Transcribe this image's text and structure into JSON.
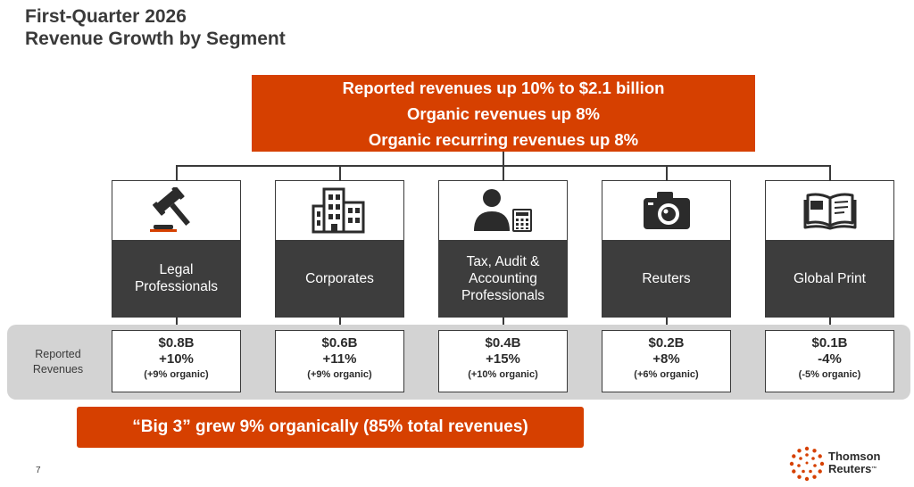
{
  "title": {
    "line1": "First-Quarter 2026",
    "line2": "Revenue Growth by Segment"
  },
  "summary": {
    "line1": "Reported revenues up 10% to $2.1 billion",
    "line2": "Organic revenues up 8%",
    "line3": "Organic recurring revenues up 8%"
  },
  "segments": [
    {
      "name": "Legal Professionals",
      "icon": "gavel-icon",
      "revenue": "$0.8B",
      "growth": "+10%",
      "organic": "(+9% organic)"
    },
    {
      "name": "Corporates",
      "icon": "office-building-icon",
      "revenue": "$0.6B",
      "growth": "+11%",
      "organic": "(+9% organic)"
    },
    {
      "name": "Tax, Audit & Accounting Professionals",
      "icon": "person-calculator-icon",
      "revenue": "$0.4B",
      "growth": "+15%",
      "organic": "(+10% organic)"
    },
    {
      "name": "Reuters",
      "icon": "camera-icon",
      "revenue": "$0.2B",
      "growth": "+8%",
      "organic": "(+6% organic)"
    },
    {
      "name": "Global Print",
      "icon": "open-book-icon",
      "revenue": "$0.1B",
      "growth": "-4%",
      "organic": "(-5% organic)"
    }
  ],
  "band_label": "Reported Revenues",
  "big3": "“Big 3” grew 9% organically (85% total revenues)",
  "page_number": "7",
  "logo": {
    "line1": "Thomson",
    "line2": "Reuters",
    "tm": "™"
  },
  "colors": {
    "accent": "#d64000",
    "dark": "#3d3d3d",
    "band": "#d3d3d3"
  }
}
